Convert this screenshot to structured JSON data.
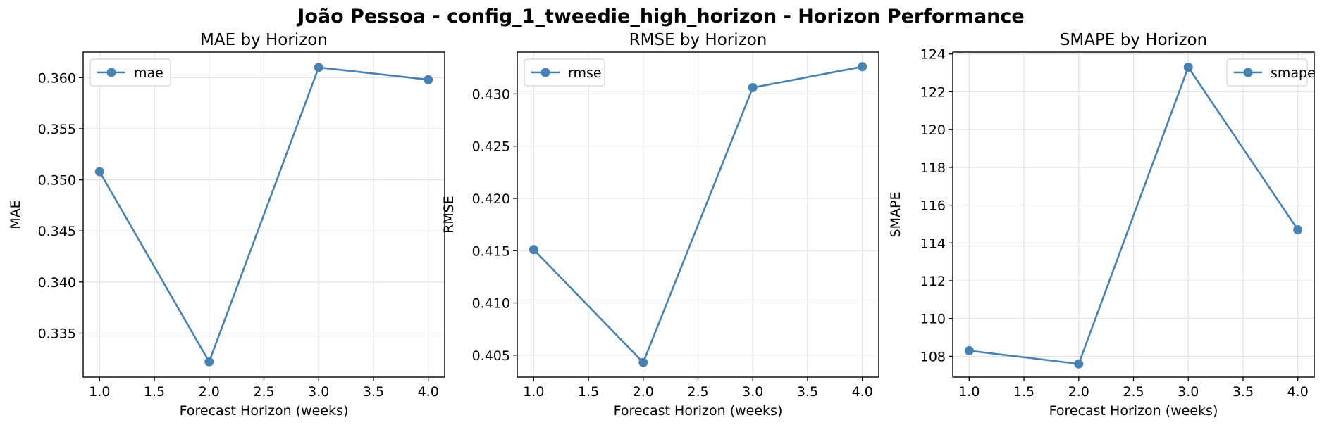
{
  "suptitle": "João Pessoa - config_1_tweedie_high_horizon - Horizon Performance",
  "colors": {
    "line": "#4682b4",
    "grid": "#e3e3e3",
    "axes": "#000000"
  },
  "chart_data": [
    {
      "type": "line",
      "title": "MAE by Horizon",
      "xlabel": "Forecast Horizon (weeks)",
      "ylabel": "MAE",
      "x": [
        1.0,
        2.0,
        3.0,
        4.0
      ],
      "series": [
        {
          "name": "mae",
          "values": [
            0.3508,
            0.3322,
            0.361,
            0.3598
          ]
        }
      ],
      "xlim": [
        0.85,
        4.15
      ],
      "ylim": [
        0.3307,
        0.3625
      ],
      "xticks": [
        1.0,
        1.5,
        2.0,
        2.5,
        3.0,
        3.5,
        4.0
      ],
      "xtick_labels": [
        "1.0",
        "1.5",
        "2.0",
        "2.5",
        "3.0",
        "3.5",
        "4.0"
      ],
      "yticks": [
        0.335,
        0.34,
        0.345,
        0.35,
        0.355,
        0.36
      ],
      "ytick_labels": [
        "0.335",
        "0.340",
        "0.345",
        "0.350",
        "0.355",
        "0.360"
      ],
      "grid": true,
      "legend": "upper left"
    },
    {
      "type": "line",
      "title": "RMSE by Horizon",
      "xlabel": "Forecast Horizon (weeks)",
      "ylabel": "RMSE",
      "x": [
        1.0,
        2.0,
        3.0,
        4.0
      ],
      "series": [
        {
          "name": "rmse",
          "values": [
            0.4151,
            0.4043,
            0.4306,
            0.4326
          ]
        }
      ],
      "xlim": [
        0.85,
        4.15
      ],
      "ylim": [
        0.4029,
        0.434
      ],
      "xticks": [
        1.0,
        1.5,
        2.0,
        2.5,
        3.0,
        3.5,
        4.0
      ],
      "xtick_labels": [
        "1.0",
        "1.5",
        "2.0",
        "2.5",
        "3.0",
        "3.5",
        "4.0"
      ],
      "yticks": [
        0.405,
        0.41,
        0.415,
        0.42,
        0.425,
        0.43
      ],
      "ytick_labels": [
        "0.405",
        "0.410",
        "0.415",
        "0.420",
        "0.425",
        "0.430"
      ],
      "grid": true,
      "legend": "upper left"
    },
    {
      "type": "line",
      "title": "SMAPE by Horizon",
      "xlabel": "Forecast Horizon (weeks)",
      "ylabel": "SMAPE",
      "x": [
        1.0,
        2.0,
        3.0,
        4.0
      ],
      "series": [
        {
          "name": "smape",
          "values": [
            108.3,
            107.6,
            123.3,
            114.7
          ]
        }
      ],
      "xlim": [
        0.85,
        4.15
      ],
      "ylim": [
        106.9,
        124.1
      ],
      "xticks": [
        1.0,
        1.5,
        2.0,
        2.5,
        3.0,
        3.5,
        4.0
      ],
      "xtick_labels": [
        "1.0",
        "1.5",
        "2.0",
        "2.5",
        "3.0",
        "3.5",
        "4.0"
      ],
      "yticks": [
        108,
        110,
        112,
        114,
        116,
        118,
        120,
        122,
        124
      ],
      "ytick_labels": [
        "108",
        "110",
        "112",
        "114",
        "116",
        "118",
        "120",
        "122",
        "124"
      ],
      "grid": true,
      "legend": "upper right"
    }
  ]
}
